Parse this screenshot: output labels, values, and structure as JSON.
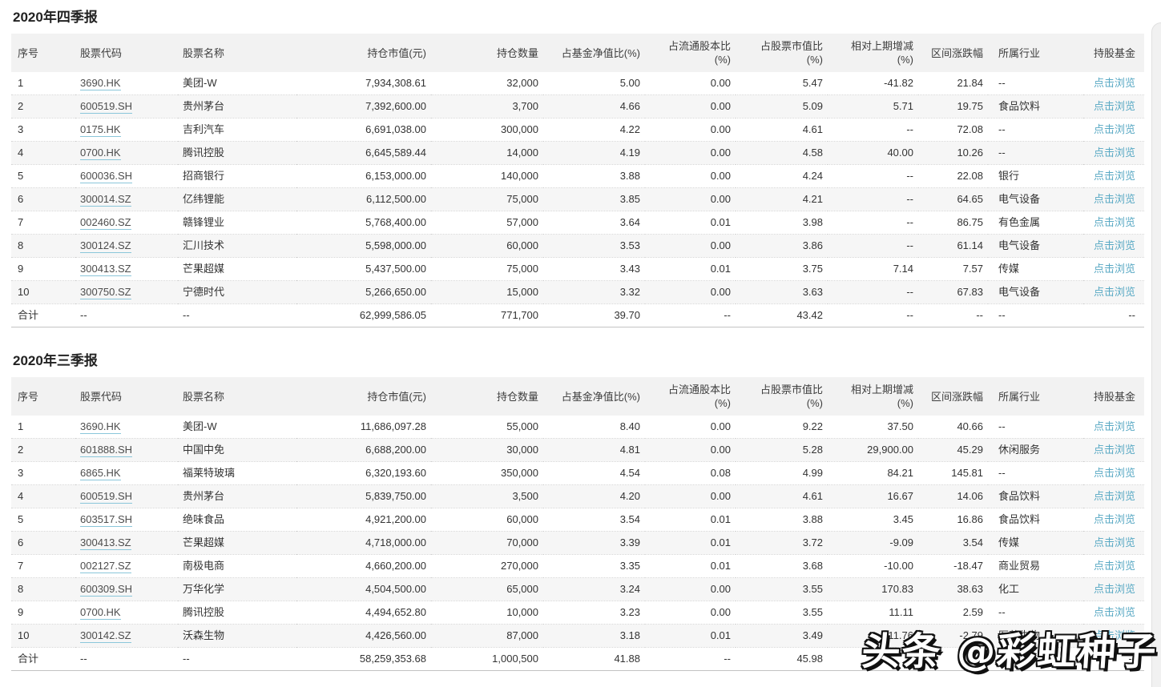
{
  "watermark": {
    "text": "头条 @彩虹种子"
  },
  "link_label": "点击浏览",
  "colors": {
    "link": "#59a9c4",
    "header_bg": "#f2f2f2",
    "row_alt": "#f6f6f6",
    "code_underline": "#8ac6da",
    "total_border": "#c3c3c3"
  },
  "columns": [
    {
      "key": "no",
      "label": "序号"
    },
    {
      "key": "code",
      "label": "股票代码"
    },
    {
      "key": "name",
      "label": "股票名称"
    },
    {
      "key": "market-value",
      "label": "持仓市值(元)"
    },
    {
      "key": "quantity",
      "label": "持仓数量"
    },
    {
      "key": "nav-pct",
      "label": "占基金净值比(%)"
    },
    {
      "key": "float-share-pct",
      "label": "占流通股本比",
      "sub": "(%)"
    },
    {
      "key": "stock-mcap-pct",
      "label": "占股票市值比",
      "sub": "(%)"
    },
    {
      "key": "change-vs-prev",
      "label": "相对上期增减",
      "sub": "(%)"
    },
    {
      "key": "range-change",
      "label": "区间涨跌幅"
    },
    {
      "key": "industry",
      "label": "所属行业"
    },
    {
      "key": "holding-funds",
      "label": "持股基金"
    }
  ],
  "tables": [
    {
      "title": "2020年四季报",
      "rows": [
        [
          "1",
          "3690.HK",
          "美团-W",
          "7,934,308.61",
          "32,000",
          "5.00",
          "0.00",
          "5.47",
          "-41.82",
          "21.84",
          "--"
        ],
        [
          "2",
          "600519.SH",
          "贵州茅台",
          "7,392,600.00",
          "3,700",
          "4.66",
          "0.00",
          "5.09",
          "5.71",
          "19.75",
          "食品饮料"
        ],
        [
          "3",
          "0175.HK",
          "吉利汽车",
          "6,691,038.00",
          "300,000",
          "4.22",
          "0.00",
          "4.61",
          "--",
          "72.08",
          "--"
        ],
        [
          "4",
          "0700.HK",
          "腾讯控股",
          "6,645,589.44",
          "14,000",
          "4.19",
          "0.00",
          "4.58",
          "40.00",
          "10.26",
          "--"
        ],
        [
          "5",
          "600036.SH",
          "招商银行",
          "6,153,000.00",
          "140,000",
          "3.88",
          "0.00",
          "4.24",
          "--",
          "22.08",
          "银行"
        ],
        [
          "6",
          "300014.SZ",
          "亿纬锂能",
          "6,112,500.00",
          "75,000",
          "3.85",
          "0.00",
          "4.21",
          "--",
          "64.65",
          "电气设备"
        ],
        [
          "7",
          "002460.SZ",
          "赣锋锂业",
          "5,768,400.00",
          "57,000",
          "3.64",
          "0.01",
          "3.98",
          "--",
          "86.75",
          "有色金属"
        ],
        [
          "8",
          "300124.SZ",
          "汇川技术",
          "5,598,000.00",
          "60,000",
          "3.53",
          "0.00",
          "3.86",
          "--",
          "61.14",
          "电气设备"
        ],
        [
          "9",
          "300413.SZ",
          "芒果超媒",
          "5,437,500.00",
          "75,000",
          "3.43",
          "0.01",
          "3.75",
          "7.14",
          "7.57",
          "传媒"
        ],
        [
          "10",
          "300750.SZ",
          "宁德时代",
          "5,266,650.00",
          "15,000",
          "3.32",
          "0.00",
          "3.63",
          "--",
          "67.83",
          "电气设备"
        ]
      ],
      "total": [
        "合计",
        "--",
        "--",
        "62,999,586.05",
        "771,700",
        "39.70",
        "--",
        "43.42",
        "--",
        "--",
        "--",
        "--"
      ]
    },
    {
      "title": "2020年三季报",
      "rows": [
        [
          "1",
          "3690.HK",
          "美团-W",
          "11,686,097.28",
          "55,000",
          "8.40",
          "0.00",
          "9.22",
          "37.50",
          "40.66",
          "--"
        ],
        [
          "2",
          "601888.SH",
          "中国中免",
          "6,688,200.00",
          "30,000",
          "4.81",
          "0.00",
          "5.28",
          "29,900.00",
          "45.29",
          "休闲服务"
        ],
        [
          "3",
          "6865.HK",
          "福莱特玻璃",
          "6,320,193.60",
          "350,000",
          "4.54",
          "0.08",
          "4.99",
          "84.21",
          "145.81",
          "--"
        ],
        [
          "4",
          "600519.SH",
          "贵州茅台",
          "5,839,750.00",
          "3,500",
          "4.20",
          "0.00",
          "4.61",
          "16.67",
          "14.06",
          "食品饮料"
        ],
        [
          "5",
          "603517.SH",
          "绝味食品",
          "4,921,200.00",
          "60,000",
          "3.54",
          "0.01",
          "3.88",
          "3.45",
          "16.86",
          "食品饮料"
        ],
        [
          "6",
          "300413.SZ",
          "芒果超媒",
          "4,718,000.00",
          "70,000",
          "3.39",
          "0.01",
          "3.72",
          "-9.09",
          "3.54",
          "传媒"
        ],
        [
          "7",
          "002127.SZ",
          "南极电商",
          "4,660,200.00",
          "270,000",
          "3.35",
          "0.01",
          "3.68",
          "-10.00",
          "-18.47",
          "商业贸易"
        ],
        [
          "8",
          "600309.SH",
          "万华化学",
          "4,504,500.00",
          "65,000",
          "3.24",
          "0.00",
          "3.55",
          "170.83",
          "38.63",
          "化工"
        ],
        [
          "9",
          "0700.HK",
          "腾讯控股",
          "4,494,652.80",
          "10,000",
          "3.23",
          "0.00",
          "3.55",
          "11.11",
          "2.59",
          "--"
        ],
        [
          "10",
          "300142.SZ",
          "沃森生物",
          "4,426,560.00",
          "87,000",
          "3.18",
          "0.01",
          "3.49",
          "411.76",
          "-2.79",
          "医药生物"
        ]
      ],
      "total": [
        "合计",
        "--",
        "--",
        "58,259,353.68",
        "1,000,500",
        "41.88",
        "--",
        "45.98",
        "--",
        "--",
        "--",
        "--"
      ]
    }
  ]
}
